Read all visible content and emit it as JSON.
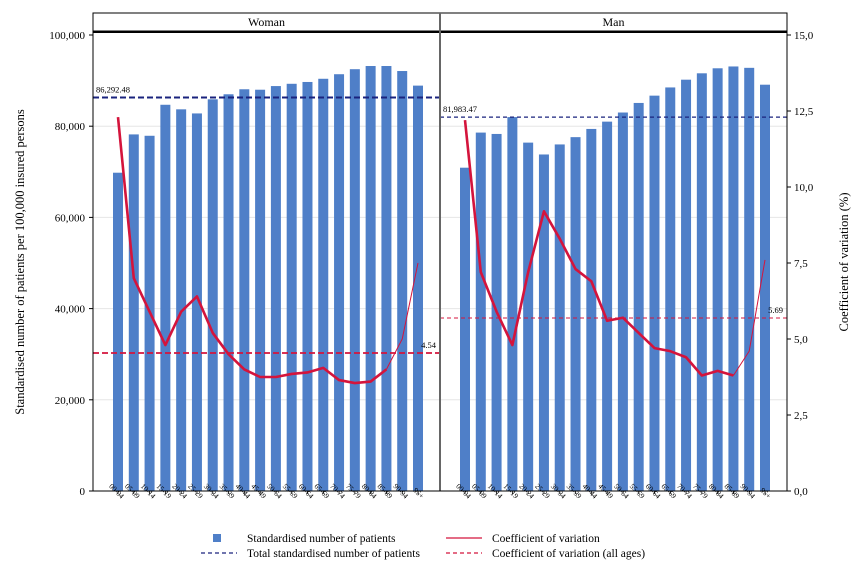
{
  "chart_data": {
    "type": "bar",
    "categories": [
      "00-04",
      "05-09",
      "10-14",
      "15-19",
      "20-24",
      "25-29",
      "30-34",
      "35-39",
      "40-44",
      "45-49",
      "50-54",
      "55-59",
      "60-64",
      "65-69",
      "70-74",
      "75-79",
      "80-84",
      "85-89",
      "90-94",
      "95+"
    ],
    "ylabel": "Standardised number of patients per 100,000 insured persons",
    "y2label": "Coefficient of variation (%)",
    "ylim": [
      0,
      100000
    ],
    "y2lim": [
      0,
      15
    ],
    "yticks": [
      "0",
      "20,000",
      "40,000",
      "60,000",
      "80,000",
      "100,000"
    ],
    "y2ticks": [
      "0,0",
      "2,5",
      "5,0",
      "7,5",
      "10,0",
      "12,5",
      "15,0"
    ],
    "panels": [
      {
        "title": "Woman",
        "bar_values": [
          69800,
          78200,
          77900,
          84700,
          83700,
          82800,
          85900,
          87000,
          88100,
          88000,
          88800,
          89300,
          89700,
          90400,
          91400,
          92500,
          93200,
          93200,
          92100,
          88900
        ],
        "cv_values": [
          12.3,
          7.0,
          5.9,
          4.8,
          5.9,
          6.4,
          5.2,
          4.5,
          4.0,
          3.75,
          3.75,
          3.85,
          3.9,
          4.05,
          3.65,
          3.55,
          3.6,
          4.0,
          5.0,
          7.5
        ],
        "total_line": 86292.48,
        "total_label": "86,292.48",
        "cv_all_ages": 4.54,
        "cv_all_label": "4.54"
      },
      {
        "title": "Man",
        "bar_values": [
          70900,
          78600,
          78300,
          82000,
          76400,
          73800,
          76000,
          77600,
          79400,
          81000,
          83000,
          85100,
          86700,
          88500,
          90200,
          91600,
          92700,
          93100,
          92800,
          89100
        ],
        "cv_values": [
          12.2,
          7.2,
          5.9,
          4.8,
          7.2,
          9.2,
          8.3,
          7.3,
          6.9,
          5.6,
          5.7,
          5.2,
          4.7,
          4.6,
          4.4,
          3.8,
          3.95,
          3.8,
          4.6,
          7.6
        ],
        "total_line": 81983.47,
        "total_label": "81,983.47",
        "cv_all_ages": 5.69,
        "cv_all_label": "5.69"
      }
    ],
    "legend": [
      {
        "label": "Standardised number of patients",
        "kind": "bar"
      },
      {
        "label": "Coefficient of variation",
        "kind": "line"
      },
      {
        "label": "Total standardised number of patients",
        "kind": "dash-navy"
      },
      {
        "label": "Coefficient of variation (all ages)",
        "kind": "dash-red"
      }
    ],
    "legend_position": "bottom",
    "colors": {
      "bar": "#4f7fc8",
      "cv_line": "#d4143c",
      "total_line": "#1a237e",
      "cv_all_line": "#d4143c"
    }
  }
}
